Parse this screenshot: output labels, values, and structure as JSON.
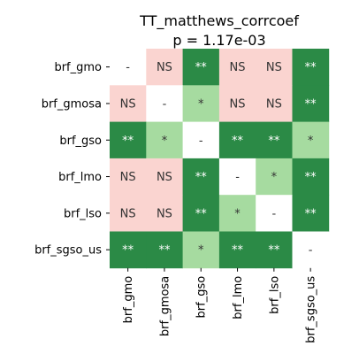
{
  "chart_data": {
    "type": "heatmap",
    "title": "TT_matthews_corrcoef",
    "subtitle": "p = 1.17e-03",
    "row_labels": [
      "brf_gmo",
      "brf_gmosa",
      "brf_gso",
      "brf_lmo",
      "brf_lso",
      "brf_sgso_us"
    ],
    "col_labels": [
      "brf_gmo",
      "brf_gmosa",
      "brf_gso",
      "brf_lmo",
      "brf_lso",
      "brf_sgso_us"
    ],
    "cells": [
      [
        "-",
        "NS",
        "**",
        "NS",
        "NS",
        "**"
      ],
      [
        "NS",
        "-",
        "*",
        "NS",
        "NS",
        "**"
      ],
      [
        "**",
        "*",
        "-",
        "**",
        "**",
        "*"
      ],
      [
        "NS",
        "NS",
        "**",
        "-",
        "*",
        "**"
      ],
      [
        "NS",
        "NS",
        "**",
        "*",
        "-",
        "**"
      ],
      [
        "**",
        "**",
        "*",
        "**",
        "**",
        "-"
      ]
    ],
    "colors": {
      "NS": "#fad4d0",
      "*": "#a6dba0",
      "**": "#2b8a46",
      "-": "#ffffff"
    },
    "text_colors": {
      "NS": "#333333",
      "*": "#333333",
      "**": "#ffffff",
      "-": "#333333"
    }
  }
}
